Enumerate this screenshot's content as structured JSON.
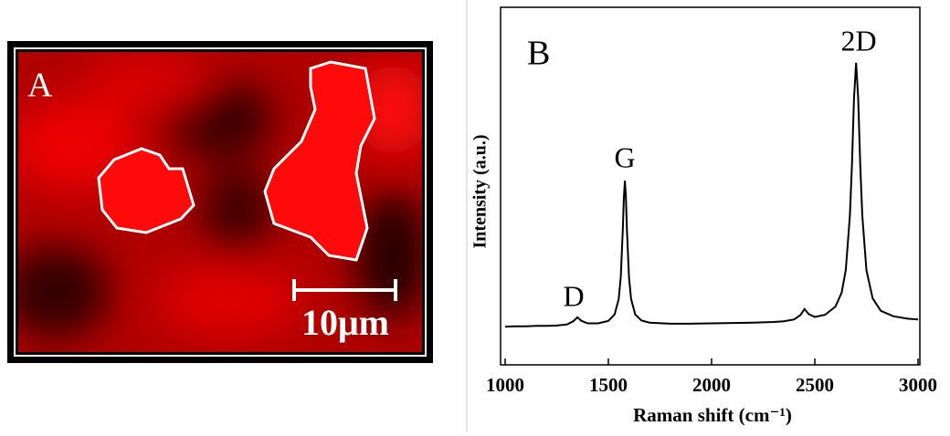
{
  "panel_a": {
    "label": "A",
    "scale_bar": "10μm"
  },
  "chart_data": {
    "type": "line",
    "panel_label": "B",
    "x_label": "Raman shift (cm⁻¹)",
    "y_label": "Intensity (a.u.)",
    "annotations": [
      "D",
      "G",
      "2D"
    ],
    "color": "#000000",
    "x": [
      1000,
      1050,
      1100,
      1150,
      1200,
      1250,
      1300,
      1330,
      1350,
      1370,
      1400,
      1450,
      1500,
      1530,
      1550,
      1560,
      1570,
      1575,
      1580,
      1585,
      1590,
      1600,
      1610,
      1630,
      1660,
      1700,
      1800,
      1900,
      2000,
      2100,
      2200,
      2300,
      2350,
      2400,
      2430,
      2450,
      2470,
      2500,
      2550,
      2600,
      2630,
      2650,
      2670,
      2680,
      2690,
      2700,
      2710,
      2720,
      2730,
      2750,
      2780,
      2820,
      2880,
      2950,
      3000
    ],
    "values": [
      10.7,
      10.8,
      10.8,
      10.9,
      10.9,
      11.0,
      11.3,
      12.2,
      13.3,
      12.3,
      11.6,
      11.6,
      12.3,
      14.1,
      18.4,
      24.6,
      37.8,
      46.9,
      51.5,
      46.9,
      37.9,
      24.5,
      18.4,
      14.1,
      12.4,
      11.8,
      11.5,
      11.5,
      11.6,
      11.7,
      11.8,
      12.0,
      12.2,
      12.7,
      13.9,
      15.6,
      14.2,
      13.4,
      14.0,
      16.3,
      20.2,
      26.5,
      41.7,
      56.2,
      74.5,
      84.5,
      74.5,
      56.2,
      41.7,
      26.5,
      18.6,
      15.1,
      13.6,
      12.9,
      12.7
    ],
    "xlim": [
      1000,
      3000
    ],
    "xticks": [
      1000,
      1500,
      2000,
      2500,
      3000
    ],
    "ylim": [
      0,
      100
    ]
  }
}
